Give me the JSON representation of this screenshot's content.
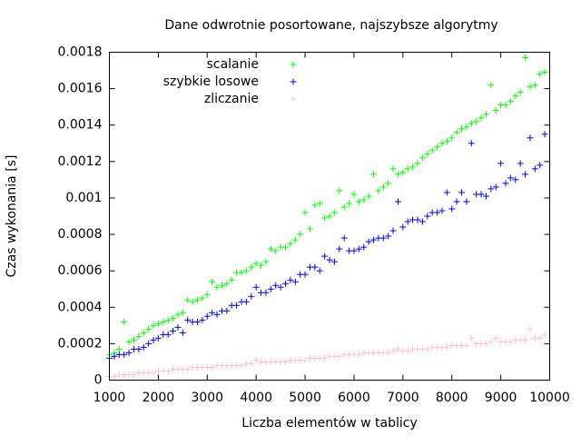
{
  "chart_data": {
    "type": "scatter",
    "title": "Dane odwrotnie posortowane, najszybsze algorytmy",
    "xlabel": "Liczba elementów w tablicy",
    "ylabel": "Czas wykonania [s]",
    "xlim": [
      1000,
      10000
    ],
    "ylim": [
      0,
      0.0018
    ],
    "x_ticks": [
      1000,
      2000,
      3000,
      4000,
      5000,
      6000,
      7000,
      8000,
      9000,
      10000
    ],
    "x_tick_labels": [
      "1000",
      "2000",
      "3000",
      "4000",
      "5000",
      "6000",
      "7000",
      "8000",
      "9000",
      "10000"
    ],
    "y_ticks": [
      0,
      0.0002,
      0.0004,
      0.0006,
      0.0008,
      0.001,
      0.0012,
      0.0014,
      0.0016,
      0.0018
    ],
    "y_tick_labels": [
      "0",
      "0.0002",
      "0.0004",
      "0.0006",
      "0.0008",
      "0.001",
      "0.0012",
      "0.0014",
      "0.0016",
      "0.0018"
    ],
    "grid": false,
    "legend_position": "top-left",
    "marker": "+",
    "x": [
      1000,
      1100,
      1200,
      1300,
      1400,
      1500,
      1600,
      1700,
      1800,
      1900,
      2000,
      2100,
      2200,
      2300,
      2400,
      2500,
      2600,
      2700,
      2800,
      2900,
      3000,
      3100,
      3200,
      3300,
      3400,
      3500,
      3600,
      3700,
      3800,
      3900,
      4000,
      4100,
      4200,
      4300,
      4400,
      4500,
      4600,
      4700,
      4800,
      4900,
      5000,
      5100,
      5200,
      5300,
      5400,
      5500,
      5600,
      5700,
      5800,
      5900,
      6000,
      6100,
      6200,
      6300,
      6400,
      6500,
      6600,
      6700,
      6800,
      6900,
      7000,
      7100,
      7200,
      7300,
      7400,
      7500,
      7600,
      7700,
      7800,
      7900,
      8000,
      8100,
      8200,
      8300,
      8400,
      8500,
      8600,
      8700,
      8800,
      8900,
      9000,
      9100,
      9200,
      9300,
      9400,
      9500,
      9600,
      9700,
      9800,
      9900
    ],
    "series": [
      {
        "name": "scalanie",
        "color": "#00ff00",
        "values": [
          0.00014,
          0.00015,
          0.00017,
          0.00032,
          0.00021,
          0.00022,
          0.00024,
          0.00026,
          0.00028,
          0.0003,
          0.00031,
          0.00032,
          0.00033,
          0.00034,
          0.00036,
          0.00037,
          0.00044,
          0.00043,
          0.00044,
          0.00045,
          0.00047,
          0.00054,
          0.00051,
          0.00052,
          0.00053,
          0.00055,
          0.00059,
          0.00059,
          0.0006,
          0.00062,
          0.00064,
          0.00063,
          0.00065,
          0.00072,
          0.00071,
          0.00073,
          0.00073,
          0.00075,
          0.00077,
          0.0008,
          0.00092,
          0.00083,
          0.00096,
          0.00097,
          0.00089,
          0.0009,
          0.00092,
          0.00104,
          0.00095,
          0.00097,
          0.00102,
          0.00098,
          0.00099,
          0.00101,
          0.00113,
          0.00104,
          0.00106,
          0.00108,
          0.00116,
          0.00113,
          0.00114,
          0.00116,
          0.00117,
          0.00119,
          0.00122,
          0.00124,
          0.00126,
          0.00128,
          0.0013,
          0.00131,
          0.00133,
          0.00136,
          0.00138,
          0.00139,
          0.00141,
          0.00142,
          0.00144,
          0.00146,
          0.00162,
          0.00148,
          0.00151,
          0.00151,
          0.00153,
          0.00156,
          0.00158,
          0.00177,
          0.00161,
          0.00162,
          0.00168,
          0.00169
        ]
      },
      {
        "name": "szybkie losowe",
        "color": "#0000ff",
        "values": [
          0.00012,
          0.00013,
          0.00014,
          0.00014,
          0.00015,
          0.00017,
          0.00017,
          0.00018,
          0.0002,
          0.00022,
          0.00023,
          0.00025,
          0.00025,
          0.00027,
          0.00029,
          0.00026,
          0.00033,
          0.00032,
          0.00032,
          0.00033,
          0.00035,
          0.00037,
          0.00036,
          0.00038,
          0.00038,
          0.00041,
          0.00041,
          0.00043,
          0.00043,
          0.00046,
          0.00051,
          0.00048,
          0.00048,
          0.0005,
          0.00052,
          0.00051,
          0.00053,
          0.00055,
          0.00054,
          0.00058,
          0.00058,
          0.00062,
          0.00062,
          0.0006,
          0.00068,
          0.00066,
          0.00065,
          0.00072,
          0.00078,
          0.00071,
          0.00071,
          0.00072,
          0.00073,
          0.00076,
          0.00077,
          0.00078,
          0.00078,
          0.00079,
          0.00082,
          0.00098,
          0.00084,
          0.00087,
          0.00088,
          0.00088,
          0.00087,
          0.0009,
          0.00092,
          0.00092,
          0.00093,
          0.00103,
          0.00094,
          0.00098,
          0.00103,
          0.00098,
          0.0013,
          0.00102,
          0.00102,
          0.00101,
          0.00105,
          0.00106,
          0.00119,
          0.00108,
          0.00111,
          0.0011,
          0.00119,
          0.00113,
          0.00133,
          0.00116,
          0.00118,
          0.00135
        ]
      },
      {
        "name": "zliczanie",
        "color": "#ffc0cb",
        "values": [
          2e-05,
          2e-05,
          3e-05,
          3e-05,
          3e-05,
          3e-05,
          4e-05,
          4e-05,
          4e-05,
          4e-05,
          5e-05,
          5e-05,
          5e-05,
          6e-05,
          6e-05,
          6e-05,
          6e-05,
          7e-05,
          7e-05,
          7e-05,
          7e-05,
          7e-05,
          8e-05,
          8e-05,
          8e-05,
          8e-05,
          8e-05,
          8e-05,
          9e-05,
          9e-05,
          0.00011,
          0.0001,
          0.0001,
          0.0001,
          0.0001,
          0.0001,
          0.0001,
          0.00011,
          0.00011,
          0.00011,
          0.00011,
          0.00012,
          0.00012,
          0.00012,
          0.00012,
          0.00013,
          0.00013,
          0.00013,
          0.00014,
          0.00014,
          0.00014,
          0.00014,
          0.00015,
          0.00015,
          0.00015,
          0.00015,
          0.00015,
          0.00015,
          0.00016,
          0.00017,
          0.00016,
          0.00016,
          0.00017,
          0.00017,
          0.00017,
          0.00017,
          0.00018,
          0.00018,
          0.00018,
          0.00018,
          0.00019,
          0.00019,
          0.00019,
          0.00019,
          0.00023,
          0.0002,
          0.0002,
          0.0002,
          0.00021,
          0.00023,
          0.00021,
          0.00021,
          0.00021,
          0.00022,
          0.00022,
          0.00022,
          0.00028,
          0.00023,
          0.00023,
          0.00025
        ]
      }
    ]
  }
}
